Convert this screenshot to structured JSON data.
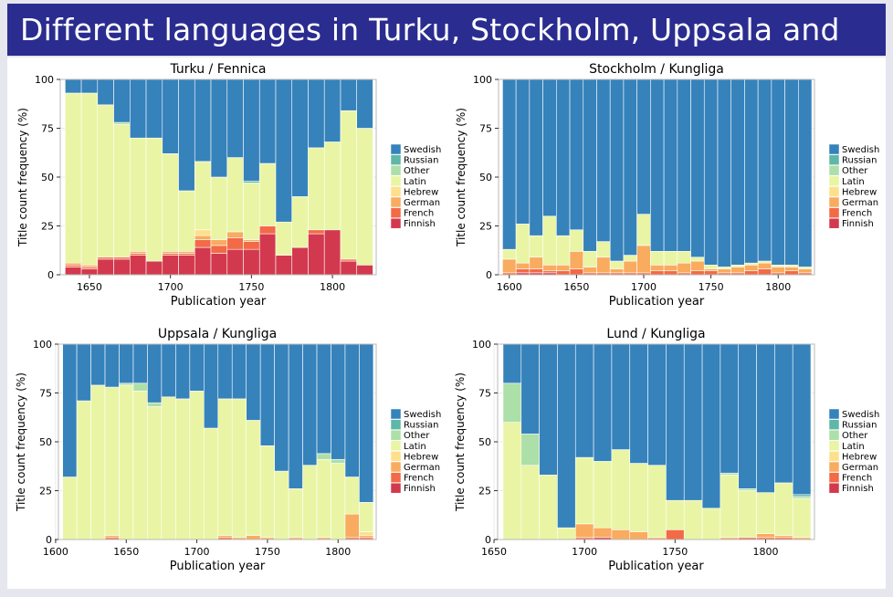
{
  "slide_title": "Different languages in Turku, Stockholm, Uppsala and Lund",
  "legend": [
    "Swedish",
    "Russian",
    "Other",
    "Latin",
    "Hebrew",
    "German",
    "French",
    "Finnish"
  ],
  "colors": {
    "Swedish": "#3682bb",
    "Russian": "#5fb7a8",
    "Other": "#addfa8",
    "Latin": "#e9f5a4",
    "Hebrew": "#fde08c",
    "German": "#f9ab5f",
    "French": "#f26a46",
    "Finnish": "#d3394e"
  },
  "chart_data": [
    {
      "type": "bar",
      "title": "Turku / Fennica",
      "xlabel": "Publication year",
      "ylabel": "Title count frequency (%)",
      "xlim": [
        1632,
        1827
      ],
      "ylim": [
        0,
        100
      ],
      "xticks": [
        1650,
        1700,
        1750,
        1800
      ],
      "yticks": [
        0,
        25,
        50,
        75,
        100
      ],
      "bar_width": 10,
      "x": [
        1640,
        1650,
        1660,
        1670,
        1680,
        1690,
        1700,
        1710,
        1720,
        1730,
        1740,
        1750,
        1760,
        1770,
        1780,
        1790,
        1800,
        1810,
        1820
      ],
      "series": [
        {
          "name": "Finnish",
          "values": [
            4,
            3,
            8,
            8,
            10,
            7,
            10,
            10,
            14,
            11,
            13,
            13,
            21,
            10,
            14,
            21,
            23,
            7,
            5
          ]
        },
        {
          "name": "French",
          "values": [
            1,
            1,
            1,
            1,
            1,
            0,
            1,
            1,
            4,
            4,
            6,
            4,
            4,
            0,
            0,
            2,
            0,
            1,
            0
          ]
        },
        {
          "name": "German",
          "values": [
            1,
            1,
            0,
            0,
            1,
            0,
            1,
            1,
            2,
            3,
            3,
            1,
            0,
            0,
            0,
            0,
            0,
            0,
            0
          ]
        },
        {
          "name": "Hebrew",
          "values": [
            0,
            0,
            0,
            0,
            0,
            0,
            0,
            0,
            3,
            0,
            0,
            0,
            0,
            0,
            0,
            0,
            0,
            0,
            0
          ]
        },
        {
          "name": "Latin",
          "values": [
            87,
            88,
            78,
            68,
            58,
            63,
            50,
            31,
            35,
            32,
            38,
            29,
            32,
            17,
            26,
            42,
            45,
            76,
            70
          ]
        },
        {
          "name": "Other",
          "values": [
            0,
            0,
            0,
            1,
            0,
            0,
            0,
            0,
            0,
            0,
            0,
            0,
            0,
            0,
            0,
            0,
            0,
            0,
            0
          ]
        },
        {
          "name": "Russian",
          "values": [
            0,
            0,
            0,
            0,
            0,
            0,
            0,
            0,
            0,
            0,
            0,
            1,
            0,
            0,
            0,
            0,
            0,
            0,
            0
          ]
        },
        {
          "name": "Swedish",
          "values": [
            7,
            7,
            13,
            22,
            30,
            30,
            38,
            57,
            42,
            50,
            40,
            52,
            43,
            73,
            60,
            35,
            32,
            16,
            25
          ]
        }
      ]
    },
    {
      "type": "bar",
      "title": "Stockholm / Kungliga",
      "xlabel": "Publication year",
      "ylabel": "Title count frequency (%)",
      "xlim": [
        1592,
        1827
      ],
      "ylim": [
        0,
        100
      ],
      "xticks": [
        1600,
        1650,
        1700,
        1750,
        1800
      ],
      "yticks": [
        0,
        25,
        50,
        75,
        100
      ],
      "bar_width": 10,
      "x": [
        1600,
        1610,
        1620,
        1630,
        1640,
        1650,
        1660,
        1670,
        1680,
        1690,
        1700,
        1710,
        1720,
        1730,
        1740,
        1750,
        1760,
        1770,
        1780,
        1790,
        1800,
        1810,
        1820
      ],
      "series": [
        {
          "name": "Finnish",
          "values": [
            0,
            1,
            1,
            1,
            0,
            0,
            0,
            0,
            0,
            0,
            0,
            0,
            0,
            0,
            0,
            0,
            0,
            0,
            0,
            0,
            0,
            0,
            0
          ]
        },
        {
          "name": "French",
          "values": [
            1,
            2,
            2,
            1,
            2,
            3,
            1,
            1,
            1,
            1,
            1,
            2,
            2,
            1,
            2,
            2,
            1,
            1,
            2,
            3,
            1,
            2,
            1
          ]
        },
        {
          "name": "German",
          "values": [
            7,
            3,
            6,
            3,
            3,
            9,
            3,
            8,
            2,
            6,
            14,
            3,
            3,
            5,
            5,
            1,
            2,
            3,
            3,
            3,
            3,
            2,
            2
          ]
        },
        {
          "name": "Hebrew",
          "values": [
            0,
            0,
            0,
            0,
            0,
            0,
            0,
            0,
            0,
            0,
            0,
            0,
            0,
            0,
            0,
            0,
            0,
            0,
            0,
            0,
            0,
            0,
            0
          ]
        },
        {
          "name": "Latin",
          "values": [
            5,
            20,
            11,
            25,
            15,
            11,
            8,
            8,
            4,
            3,
            16,
            7,
            7,
            6,
            2,
            2,
            1,
            1,
            1,
            1,
            1,
            1,
            1
          ]
        },
        {
          "name": "Other",
          "values": [
            0,
            0,
            0,
            0,
            0,
            0,
            0,
            0,
            0,
            0,
            0,
            0,
            0,
            0,
            0,
            0,
            0,
            0,
            0,
            0,
            0,
            0,
            0
          ]
        },
        {
          "name": "Russian",
          "values": [
            0,
            0,
            0,
            0,
            0,
            0,
            0,
            0,
            0,
            0,
            0,
            0,
            0,
            0,
            0,
            0,
            0,
            0,
            0,
            0,
            0,
            0,
            0
          ]
        },
        {
          "name": "Swedish",
          "values": [
            87,
            74,
            80,
            70,
            80,
            77,
            88,
            83,
            93,
            90,
            69,
            88,
            88,
            88,
            91,
            95,
            96,
            95,
            94,
            93,
            95,
            95,
            96
          ]
        }
      ]
    },
    {
      "type": "bar",
      "title": "Uppsala / Kungliga",
      "xlabel": "Publication year",
      "ylabel": "Title count frequency (%)",
      "xlim": [
        1602,
        1827
      ],
      "ylim": [
        0,
        100
      ],
      "xticks": [
        1600,
        1650,
        1700,
        1750,
        1800
      ],
      "yticks": [
        0,
        25,
        50,
        75,
        100
      ],
      "bar_width": 10,
      "x": [
        1610,
        1620,
        1630,
        1640,
        1650,
        1660,
        1670,
        1680,
        1690,
        1700,
        1710,
        1720,
        1730,
        1740,
        1750,
        1760,
        1770,
        1780,
        1790,
        1800,
        1810,
        1820
      ],
      "series": [
        {
          "name": "Finnish",
          "values": [
            0,
            0,
            0,
            0,
            0,
            0,
            0,
            0,
            0,
            0,
            0,
            0,
            0,
            0,
            0,
            0,
            0,
            0,
            0,
            0,
            0,
            0
          ]
        },
        {
          "name": "French",
          "values": [
            0,
            0,
            0,
            1,
            0,
            0,
            0,
            0,
            0,
            0,
            0,
            1,
            0,
            0,
            0,
            0,
            0,
            0,
            0,
            0,
            1,
            1
          ]
        },
        {
          "name": "German",
          "values": [
            0,
            0,
            0,
            1,
            0,
            0,
            0,
            0,
            0,
            0,
            0,
            1,
            1,
            2,
            1,
            0,
            1,
            0,
            1,
            0,
            12,
            1
          ]
        },
        {
          "name": "Hebrew",
          "values": [
            0,
            0,
            0,
            0,
            0,
            0,
            0,
            0,
            0,
            0,
            0,
            0,
            0,
            0,
            0,
            0,
            0,
            0,
            0,
            0,
            0,
            2
          ]
        },
        {
          "name": "Latin",
          "values": [
            32,
            71,
            79,
            76,
            79,
            76,
            68,
            73,
            72,
            76,
            57,
            70,
            71,
            59,
            47,
            35,
            25,
            38,
            40,
            39,
            19,
            15
          ]
        },
        {
          "name": "Other",
          "values": [
            0,
            0,
            0,
            0,
            1,
            4,
            2,
            0,
            0,
            0,
            0,
            0,
            0,
            0,
            0,
            0,
            0,
            0,
            3,
            2,
            0,
            0
          ]
        },
        {
          "name": "Russian",
          "values": [
            0,
            0,
            0,
            0,
            0,
            0,
            0,
            0,
            0,
            0,
            0,
            0,
            0,
            0,
            0,
            0,
            0,
            0,
            0,
            0,
            0,
            0
          ]
        },
        {
          "name": "Swedish",
          "values": [
            68,
            29,
            21,
            22,
            20,
            20,
            30,
            27,
            28,
            24,
            43,
            28,
            28,
            39,
            52,
            65,
            74,
            62,
            56,
            59,
            68,
            81
          ]
        }
      ]
    },
    {
      "type": "bar",
      "title": "Lund / Kungliga",
      "xlabel": "Publication year",
      "ylabel": "Title count frequency (%)",
      "xlim": [
        1652,
        1827
      ],
      "ylim": [
        0,
        100
      ],
      "xticks": [
        1650,
        1700,
        1750,
        1800
      ],
      "yticks": [
        0,
        25,
        50,
        75,
        100
      ],
      "bar_width": 10,
      "x": [
        1660,
        1670,
        1680,
        1690,
        1700,
        1710,
        1720,
        1730,
        1740,
        1750,
        1760,
        1770,
        1780,
        1790,
        1800,
        1810,
        1820
      ],
      "series": [
        {
          "name": "Finnish",
          "values": [
            0,
            0,
            0,
            0,
            0,
            1,
            0,
            0,
            0,
            0,
            0,
            0,
            0,
            0,
            0,
            0,
            0
          ]
        },
        {
          "name": "French",
          "values": [
            0,
            0,
            0,
            0,
            1,
            0,
            0,
            0,
            0,
            5,
            0,
            0,
            0,
            1,
            1,
            1,
            0
          ]
        },
        {
          "name": "German",
          "values": [
            0,
            0,
            0,
            0,
            7,
            5,
            5,
            4,
            1,
            0,
            0,
            0,
            1,
            0,
            2,
            1,
            1
          ]
        },
        {
          "name": "Hebrew",
          "values": [
            0,
            0,
            0,
            0,
            0,
            0,
            0,
            0,
            0,
            0,
            0,
            0,
            0,
            0,
            0,
            0,
            0
          ]
        },
        {
          "name": "Latin",
          "values": [
            60,
            38,
            33,
            6,
            34,
            34,
            41,
            35,
            37,
            15,
            20,
            16,
            32,
            24,
            21,
            27,
            20
          ]
        },
        {
          "name": "Other",
          "values": [
            20,
            16,
            0,
            0,
            0,
            0,
            0,
            0,
            0,
            0,
            0,
            0,
            1,
            1,
            0,
            0,
            1
          ]
        },
        {
          "name": "Russian",
          "values": [
            0,
            0,
            0,
            0,
            0,
            0,
            0,
            0,
            0,
            0,
            0,
            0,
            0,
            0,
            0,
            0,
            1
          ]
        },
        {
          "name": "Swedish",
          "values": [
            20,
            46,
            67,
            94,
            58,
            60,
            54,
            61,
            62,
            80,
            80,
            84,
            66,
            74,
            76,
            71,
            77
          ]
        }
      ]
    }
  ]
}
